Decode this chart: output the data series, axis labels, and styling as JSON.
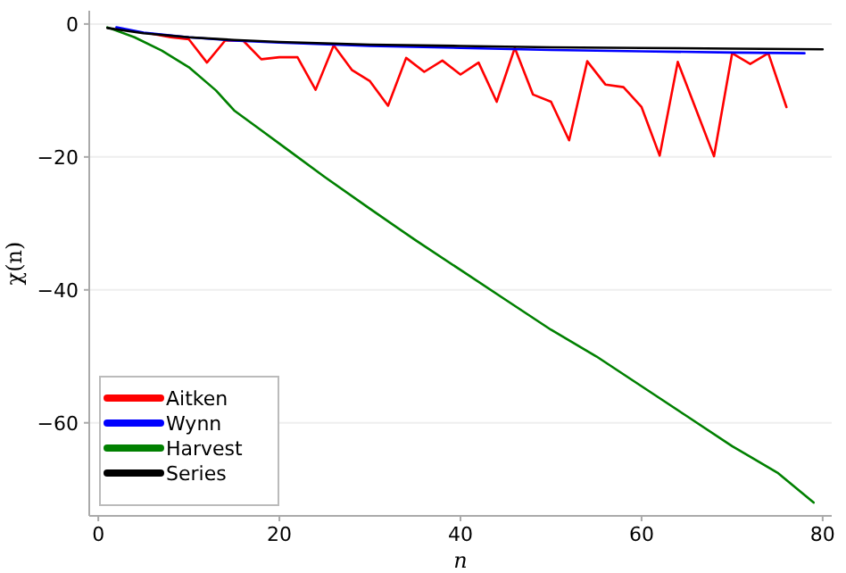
{
  "chart_data": {
    "type": "line",
    "xlabel": "n",
    "ylabel": "χ(n)",
    "xlim": [
      -1,
      81
    ],
    "ylim": [
      -74,
      2
    ],
    "xticks": [
      0,
      20,
      40,
      60,
      80
    ],
    "yticks": [
      0,
      -20,
      -40,
      -60
    ],
    "grid": "y",
    "legend": "bottom left",
    "line_style": "solid",
    "marker": "none",
    "series": [
      {
        "name": "Aitken",
        "color": "#ff0000",
        "x": [
          6,
          8,
          10,
          12,
          14,
          16,
          18,
          20,
          22,
          24,
          26,
          28,
          30,
          32,
          34,
          36,
          38,
          40,
          42,
          44,
          46,
          48,
          50,
          52,
          54,
          56,
          58,
          60,
          62,
          64,
          66,
          68,
          70,
          72,
          74,
          76
        ],
        "values": [
          -1.5,
          -2.0,
          -2.3,
          -5.8,
          -2.5,
          -2.5,
          -5.3,
          -5.0,
          -5.0,
          -9.9,
          -3.2,
          -6.9,
          -8.6,
          -12.3,
          -5.1,
          -7.2,
          -5.5,
          -7.6,
          -5.8,
          -11.7,
          -3.6,
          -10.6,
          -11.7,
          -17.5,
          -5.6,
          -9.1,
          -9.5,
          -12.5,
          -19.8,
          -5.7,
          -12.8,
          -19.9,
          -4.4,
          -6.0,
          -4.4,
          -12.5
        ]
      },
      {
        "name": "Wynn",
        "color": "#0000ff",
        "x": [
          2,
          5,
          10,
          15,
          20,
          30,
          40,
          50,
          60,
          70,
          78
        ],
        "values": [
          -0.5,
          -1.3,
          -2.0,
          -2.5,
          -2.8,
          -3.3,
          -3.6,
          -3.9,
          -4.1,
          -4.3,
          -4.4
        ]
      },
      {
        "name": "Harvest",
        "color": "#008000",
        "x": [
          1,
          4,
          7,
          10,
          13,
          15,
          18,
          21,
          25,
          30,
          35,
          40,
          45,
          50,
          55,
          60,
          65,
          70,
          75,
          79
        ],
        "values": [
          -0.5,
          -2,
          -4,
          -6.5,
          -10,
          -13,
          -16,
          -19,
          -23,
          -27.8,
          -32.5,
          -37,
          -41.5,
          -46,
          -50,
          -54.5,
          -59,
          -63.5,
          -67.5,
          -72
        ]
      },
      {
        "name": "Series",
        "color": "#000000",
        "x": [
          1,
          5,
          10,
          15,
          20,
          30,
          40,
          50,
          60,
          70,
          80
        ],
        "values": [
          -0.6,
          -1.4,
          -2.0,
          -2.4,
          -2.7,
          -3.1,
          -3.3,
          -3.5,
          -3.6,
          -3.7,
          -3.8
        ]
      }
    ]
  }
}
